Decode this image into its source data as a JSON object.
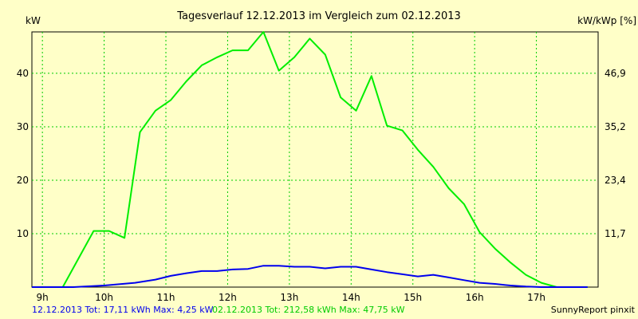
{
  "chart_data": {
    "type": "line",
    "title": "Tagesverlauf 12.12.2013 im Vergleich zum 02.12.2013",
    "ylabel_left": "kW",
    "ylabel_right": "kW/kWp [%]",
    "x_ticks": [
      "9h",
      "10h",
      "11h",
      "12h",
      "13h",
      "14h",
      "15h",
      "16h",
      "17h"
    ],
    "x_tick_values": [
      9,
      10,
      11,
      12,
      13,
      14,
      15,
      16,
      17
    ],
    "xlim": [
      8.83,
      18.0
    ],
    "y_ticks_left": [
      "10",
      "20",
      "30",
      "40"
    ],
    "y_tick_values_left": [
      10,
      20,
      30,
      40
    ],
    "y_ticks_right": [
      "11,7",
      "23,4",
      "35,2",
      "46,9"
    ],
    "ylim": [
      0,
      47.75
    ],
    "grid": true,
    "series": [
      {
        "name": "02.12.2013",
        "color": "#00EE00",
        "x": [
          8.83,
          9.33,
          9.83,
          10.08,
          10.33,
          10.58,
          10.83,
          11.08,
          11.33,
          11.58,
          11.83,
          12.08,
          12.33,
          12.58,
          12.83,
          13.08,
          13.33,
          13.58,
          13.83,
          14.08,
          14.33,
          14.58,
          14.83,
          15.08,
          15.33,
          15.58,
          15.83,
          16.08,
          16.33,
          16.58,
          16.83,
          17.08,
          17.33,
          17.58,
          17.83
        ],
        "values": [
          0,
          0,
          10.5,
          10.5,
          9.2,
          29,
          33,
          35,
          38.5,
          41.5,
          43,
          44.3,
          44.3,
          47.75,
          40.5,
          43,
          46.5,
          43.5,
          35.5,
          33,
          39.5,
          30.2,
          29.3,
          25.7,
          22.5,
          18.5,
          15.5,
          10.3,
          7.2,
          4.6,
          2.3,
          0.8,
          0,
          0,
          0
        ]
      },
      {
        "name": "12.12.2013",
        "color": "#0000EE",
        "x": [
          8.83,
          9.5,
          10,
          10.5,
          10.83,
          11.08,
          11.33,
          11.58,
          11.83,
          12.08,
          12.33,
          12.58,
          12.83,
          13.08,
          13.33,
          13.58,
          13.83,
          14.08,
          14.33,
          14.58,
          14.83,
          15.08,
          15.33,
          15.58,
          15.83,
          16.08,
          16.33,
          16.58,
          16.83,
          17.08,
          17.33,
          17.83
        ],
        "values": [
          0,
          0,
          0.3,
          0.8,
          1.4,
          2.1,
          2.6,
          3,
          3,
          3.3,
          3.4,
          4,
          4,
          3.8,
          3.8,
          3.5,
          3.8,
          3.8,
          3.3,
          2.8,
          2.4,
          2.0,
          2.3,
          1.8,
          1.3,
          0.8,
          0.6,
          0.3,
          0.1,
          0,
          0,
          0
        ]
      }
    ]
  },
  "footer": {
    "stats_blue": "12.12.2013 Tot: 17,11 kWh Max: 4,25 kW",
    "stats_green": "02.12.2013 Tot: 212,58 kWh Max: 47,75 kW",
    "credit": "SunnyReport pinxit"
  },
  "colors": {
    "background": "#FFFFC8",
    "grid": "#00CC00",
    "axis": "#000000"
  }
}
